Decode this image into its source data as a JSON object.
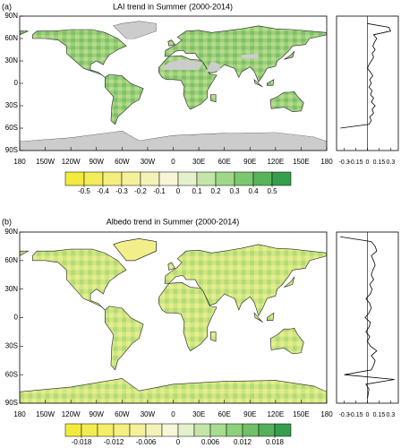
{
  "panels": [
    {
      "label": "(a)",
      "title": "LAI trend in Summer (2000-2014)",
      "map": {
        "xlim": [
          -180,
          180
        ],
        "ylim": [
          -90,
          90
        ],
        "xticks": [
          {
            "value": -180,
            "label": "180"
          },
          {
            "value": -150,
            "label": "150W"
          },
          {
            "value": -120,
            "label": "120W"
          },
          {
            "value": -90,
            "label": "90W"
          },
          {
            "value": -60,
            "label": "60W"
          },
          {
            "value": -30,
            "label": "30W"
          },
          0,
          {
            "value": 30,
            "label": "30E"
          },
          {
            "value": 60,
            "label": "60E"
          },
          {
            "value": 90,
            "label": "90E"
          },
          {
            "value": 120,
            "label": "120E"
          },
          {
            "value": 150,
            "label": "150E"
          },
          180
        ],
        "yticks": [
          {
            "value": 90,
            "label": "90N"
          },
          {
            "value": 60,
            "label": "60N"
          },
          {
            "value": 30,
            "label": "30N"
          },
          0,
          {
            "value": -30,
            "label": "30S"
          },
          {
            "value": -60,
            "label": "60S"
          },
          {
            "value": -90,
            "label": "90S"
          }
        ]
      },
      "colorbar": {
        "lim": [
          -0.6,
          0.6
        ],
        "ticks": [
          -0.5,
          -0.4,
          -0.3,
          -0.2,
          -0.1,
          0,
          0.1,
          0.2,
          0.3,
          0.4,
          0.5
        ],
        "colors": [
          "#f2ea3c",
          "#f3ec5c",
          "#f4ee7c",
          "#f5f09a",
          "#f5f2b8",
          "#f7f6d8",
          "#e4f2cc",
          "#c4e6a8",
          "#a0d88a",
          "#7cc870",
          "#58b45a",
          "#369e4c"
        ]
      },
      "profile": {
        "type": "line",
        "color": "#000000",
        "xlim": [
          -0.4,
          0.4
        ],
        "ylim": [
          -90,
          90
        ],
        "xticks": [
          -0.3,
          -0.15,
          0,
          0.15,
          0.3
        ],
        "y": [
          -60,
          -55,
          -50,
          -45,
          -40,
          -35,
          -30,
          -25,
          -20,
          -15,
          -10,
          -5,
          0,
          5,
          10,
          15,
          20,
          25,
          30,
          35,
          40,
          45,
          50,
          55,
          60,
          65,
          70,
          75,
          80
        ],
        "values": [
          -0.35,
          0.02,
          0.05,
          0.03,
          0.08,
          0.06,
          0.1,
          0.05,
          0.08,
          0.04,
          0.06,
          0.02,
          0.05,
          0.03,
          0.07,
          0.04,
          0.0,
          0.02,
          0.05,
          0.08,
          0.06,
          0.1,
          0.07,
          0.09,
          0.12,
          0.08,
          0.3,
          0.28,
          0.0
        ]
      }
    },
    {
      "label": "(b)",
      "title": "Albedo trend in Summer (2000-2014)",
      "map": {
        "xlim": [
          -180,
          180
        ],
        "ylim": [
          -90,
          90
        ],
        "xticks": [
          {
            "value": -180,
            "label": "180"
          },
          {
            "value": -150,
            "label": "150W"
          },
          {
            "value": -120,
            "label": "120W"
          },
          {
            "value": -90,
            "label": "90W"
          },
          {
            "value": -60,
            "label": "60W"
          },
          {
            "value": -30,
            "label": "30W"
          },
          0,
          {
            "value": 30,
            "label": "30E"
          },
          {
            "value": 60,
            "label": "60E"
          },
          {
            "value": 90,
            "label": "90E"
          },
          {
            "value": 120,
            "label": "120E"
          },
          {
            "value": 150,
            "label": "150E"
          },
          180
        ],
        "yticks": [
          {
            "value": 90,
            "label": "90N"
          },
          {
            "value": 60,
            "label": "60N"
          },
          {
            "value": 30,
            "label": "30N"
          },
          0,
          {
            "value": -30,
            "label": "30S"
          },
          {
            "value": -60,
            "label": "60S"
          },
          {
            "value": -90,
            "label": "90S"
          }
        ]
      },
      "colorbar": {
        "lim": [
          -0.021,
          0.021
        ],
        "ticks": [
          -0.018,
          -0.012,
          -0.006,
          0,
          0.006,
          0.012,
          0.018
        ],
        "colors": [
          "#f2ea3c",
          "#f3ec50",
          "#f4ee68",
          "#f4ef80",
          "#f5f09a",
          "#f5f2b8",
          "#f7f6d8",
          "#e4f2cc",
          "#c4e6a8",
          "#a8dc90",
          "#8ed07c",
          "#70c068",
          "#54b05a",
          "#369e4c"
        ]
      },
      "profile": {
        "type": "line",
        "color": "#000000",
        "xlim": [
          -0.4,
          0.4
        ],
        "ylim": [
          -90,
          90
        ],
        "xticks": [
          -0.3,
          -0.15,
          0,
          0.15,
          0.3
        ],
        "y": [
          -85,
          -80,
          -75,
          -70,
          -65,
          -60,
          -55,
          -50,
          -45,
          -40,
          -35,
          -30,
          -25,
          -20,
          -15,
          -10,
          -5,
          0,
          5,
          10,
          15,
          20,
          25,
          30,
          35,
          40,
          45,
          50,
          55,
          60,
          65,
          70,
          75,
          80,
          85
        ],
        "values": [
          0.0,
          0.01,
          0.02,
          -0.02,
          0.35,
          -0.3,
          0.05,
          0.08,
          0.1,
          0.05,
          0.12,
          0.04,
          0.0,
          0.03,
          -0.02,
          0.02,
          0.04,
          -0.03,
          0.02,
          0.05,
          0.03,
          -0.02,
          0.04,
          0.06,
          0.03,
          0.08,
          0.05,
          0.07,
          0.1,
          0.08,
          0.05,
          0.12,
          0.1,
          0.05,
          -0.35
        ]
      }
    }
  ]
}
